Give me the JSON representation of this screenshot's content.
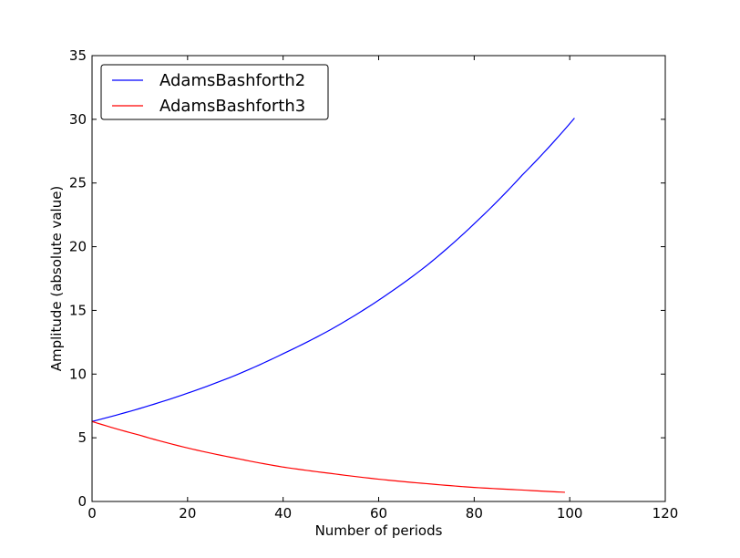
{
  "chart_data": {
    "type": "line",
    "title": "",
    "xlabel": "Number of periods",
    "ylabel": "Amplitude (absolute value)",
    "xlim": [
      0,
      120
    ],
    "ylim": [
      0,
      35
    ],
    "xticks": [
      0,
      20,
      40,
      60,
      80,
      100,
      120
    ],
    "yticks": [
      0,
      5,
      10,
      15,
      20,
      25,
      30,
      35
    ],
    "grid": false,
    "legend_position": "top-left",
    "series": [
      {
        "name": "AdamsBashforth2",
        "color": "#0000ff",
        "x": [
          0,
          10,
          20,
          30,
          40,
          50,
          60,
          70,
          80,
          90,
          101
        ],
        "y": [
          6.28,
          7.3,
          8.5,
          9.9,
          11.6,
          13.5,
          15.8,
          18.5,
          21.8,
          25.6,
          30.1
        ]
      },
      {
        "name": "AdamsBashforth3",
        "color": "#ff0000",
        "x": [
          0,
          10,
          20,
          30,
          40,
          50,
          60,
          70,
          80,
          90,
          99
        ],
        "y": [
          6.28,
          5.2,
          4.2,
          3.4,
          2.7,
          2.2,
          1.75,
          1.4,
          1.1,
          0.9,
          0.72
        ]
      }
    ]
  }
}
